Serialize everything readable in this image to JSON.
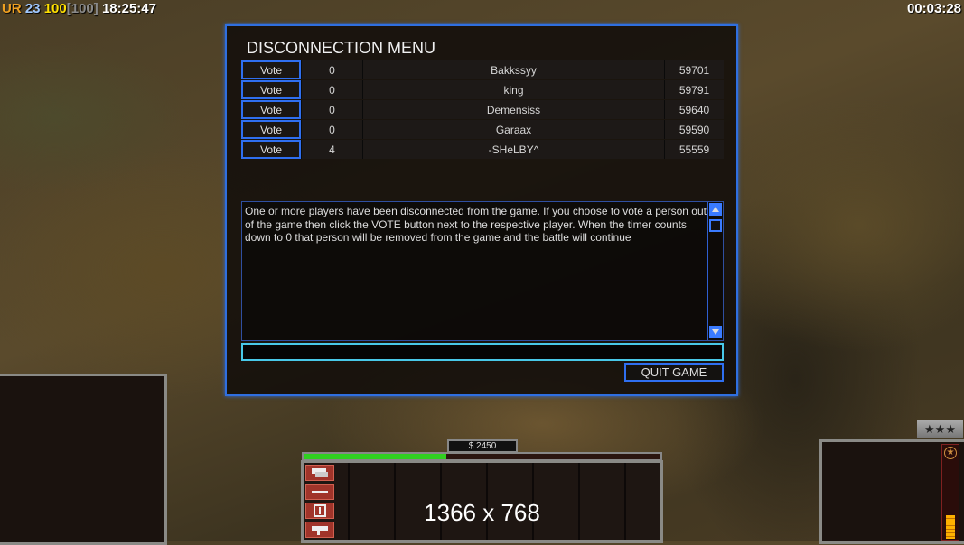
{
  "hud": {
    "faction": "UR",
    "value1": "23",
    "value2": "100",
    "value3": "[100]",
    "clock": "18:25:47",
    "timer": "00:03:28"
  },
  "dialog": {
    "title": "DISCONNECTION MENU",
    "vote_label": "Vote",
    "players": [
      {
        "votes": "0",
        "name": "Bakkssyy",
        "score": "59701"
      },
      {
        "votes": "0",
        "name": "king",
        "score": "59791"
      },
      {
        "votes": "0",
        "name": "Demensiss",
        "score": "59640"
      },
      {
        "votes": "0",
        "name": "Garaax",
        "score": "59590"
      },
      {
        "votes": "4",
        "name": "-SHeLBY^",
        "score": "55559"
      }
    ],
    "message": "One or more players have been disconnected from the game. If you choose to vote a person out of the game then click the VOTE button next to the respective player. When the timer counts down to 0 that person will be removed from the game and the battle will continue",
    "chat_value": "",
    "quit_label": "QUIT GAME"
  },
  "controlbar": {
    "money": "$ 2450",
    "power_fraction": 0.4,
    "resolution_overlay": "1366 x 768",
    "rank_stars": "★★★",
    "rank_gauge_fraction": 0.3
  },
  "colors": {
    "accent": "#2f6ff0",
    "faction": "#f0a020",
    "value1": "#a0c8ff",
    "value2": "#ffe000",
    "value3": "#8a8a8a",
    "power": "#30d020"
  }
}
